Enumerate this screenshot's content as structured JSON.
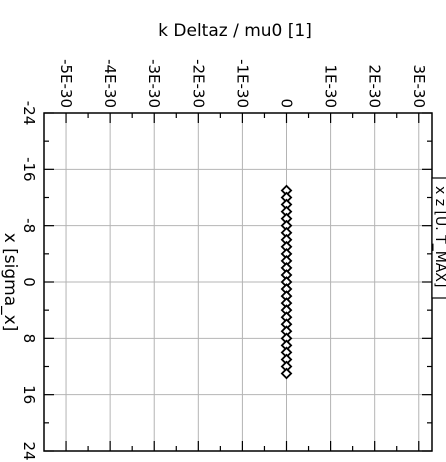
{
  "chart_data": {
    "type": "scatter",
    "title": "",
    "top_axis": {
      "label": "k Deltaz / mu0 [1]",
      "ticks": [
        -5e-30,
        -4e-30,
        -3e-30,
        -2e-30,
        -1e-30,
        0,
        1e-30,
        2e-30,
        3e-30
      ],
      "tick_labels": [
        "-5E-30",
        "-4E-30",
        "-3E-30",
        "-2E-30",
        "-1E-30",
        "0",
        "1E-30",
        "2E-30",
        "3E-30"
      ],
      "range": [
        -5.5e-30,
        3.3e-30
      ]
    },
    "left_axis": {
      "label": "x [sigma_x]",
      "ticks": [
        -24,
        -16,
        -8,
        0,
        8,
        16,
        24
      ],
      "tick_labels": [
        "-24",
        "-16",
        "-8",
        "0",
        "8",
        "16",
        "24"
      ],
      "range": [
        -24,
        24
      ]
    },
    "grid": true,
    "marker": "diamond",
    "points": [
      {
        "x": -13,
        "y": 0
      },
      {
        "x": -12,
        "y": 0
      },
      {
        "x": -11,
        "y": 0
      },
      {
        "x": -10,
        "y": 0
      },
      {
        "x": -9,
        "y": 0
      },
      {
        "x": -8,
        "y": 0
      },
      {
        "x": -7,
        "y": 0
      },
      {
        "x": -6,
        "y": 0
      },
      {
        "x": -5,
        "y": 0
      },
      {
        "x": -4,
        "y": 0
      },
      {
        "x": -3,
        "y": 0
      },
      {
        "x": -2,
        "y": 0
      },
      {
        "x": -1,
        "y": 0
      },
      {
        "x": 0,
        "y": 0
      },
      {
        "x": 1,
        "y": 0
      },
      {
        "x": 2,
        "y": 0
      },
      {
        "x": 3,
        "y": 0
      },
      {
        "x": 4,
        "y": 0
      },
      {
        "x": 5,
        "y": 0
      },
      {
        "x": 6,
        "y": 0
      },
      {
        "x": 7,
        "y": 0
      },
      {
        "x": 8,
        "y": 0
      },
      {
        "x": 9,
        "y": 0
      },
      {
        "x": 10,
        "y": 0
      },
      {
        "x": 11,
        "y": 0
      },
      {
        "x": 12,
        "y": 0
      },
      {
        "x": 13,
        "y": 0
      }
    ]
  },
  "side_legend": {
    "text": "x z [U. T_MAX]"
  }
}
